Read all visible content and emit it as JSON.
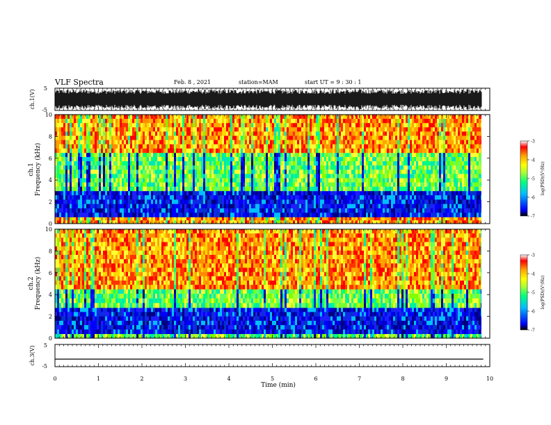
{
  "header": {
    "title": "VLF Spectra",
    "date": "Feb. 8 , 2021",
    "station": "station=MAM",
    "start": "start UT =  9 : 30 : 1"
  },
  "chart_data": [
    {
      "type": "line",
      "panel": "ch1-waveform",
      "ylabel": "ch.1(V)",
      "yticks": [
        "5",
        "-5"
      ],
      "ylim": [
        -5,
        5
      ],
      "note": "dense noisy waveform filling the panel"
    },
    {
      "type": "heatmap",
      "panel": "ch1-spectrogram",
      "ylabel_line1": "ch.1",
      "ylabel_line2": "Frequency (kHz)",
      "yticks": [
        "0",
        "2",
        "4",
        "6",
        "8",
        "10"
      ],
      "ylim": [
        0,
        10
      ],
      "xlim": [
        0,
        10
      ],
      "colorbar": {
        "label": "log(PSD)(V²/Hz)",
        "ticks": [
          "-3",
          "-4",
          "-5",
          "-6",
          "-7"
        ],
        "range": [
          -7,
          -3
        ],
        "colors": [
          "#000000",
          "#0000ff",
          "#00bfff",
          "#00ff7f",
          "#adff2f",
          "#ffff00",
          "#ffa500",
          "#ff0000",
          "#ffffff"
        ]
      },
      "bands": [
        {
          "from_khz": 0.0,
          "to_khz": 0.6,
          "level": "high"
        },
        {
          "from_khz": 0.6,
          "to_khz": 3.0,
          "level": "low"
        },
        {
          "from_khz": 3.0,
          "to_khz": 6.5,
          "level": "mid"
        },
        {
          "from_khz": 6.5,
          "to_khz": 10.0,
          "level": "high"
        }
      ]
    },
    {
      "type": "heatmap",
      "panel": "ch2-spectrogram",
      "ylabel_line1": "ch.2",
      "ylabel_line2": "Frequency (kHz)",
      "yticks": [
        "0",
        "2",
        "4",
        "6",
        "8",
        "10"
      ],
      "ylim": [
        0,
        10
      ],
      "xlim": [
        0,
        10
      ],
      "colorbar": {
        "label": "log(PSD)(V²/Hz)",
        "ticks": [
          "-3",
          "-4",
          "-5",
          "-6",
          "-7"
        ],
        "range": [
          -7,
          -3
        ],
        "colors": [
          "#000000",
          "#0000ff",
          "#00bfff",
          "#00ff7f",
          "#adff2f",
          "#ffff00",
          "#ffa500",
          "#ff0000",
          "#ffffff"
        ]
      },
      "bands": [
        {
          "from_khz": 0.0,
          "to_khz": 0.4,
          "level": "mid"
        },
        {
          "from_khz": 0.4,
          "to_khz": 2.8,
          "level": "low"
        },
        {
          "from_khz": 2.8,
          "to_khz": 4.5,
          "level": "mid"
        },
        {
          "from_khz": 4.5,
          "to_khz": 10.0,
          "level": "high"
        }
      ]
    },
    {
      "type": "line",
      "panel": "ch3-waveform",
      "ylabel": "ch.3(V)",
      "yticks": [
        "5",
        "-5"
      ],
      "ylim": [
        -5,
        5
      ],
      "x": [
        0,
        9.85
      ],
      "y": [
        -1.6,
        -1.6
      ],
      "xlabel": "Time (min)",
      "xticks": [
        "0",
        "1",
        "2",
        "3",
        "4",
        "5",
        "6",
        "7",
        "8",
        "9",
        "10"
      ],
      "xlim": [
        0,
        10
      ]
    }
  ]
}
